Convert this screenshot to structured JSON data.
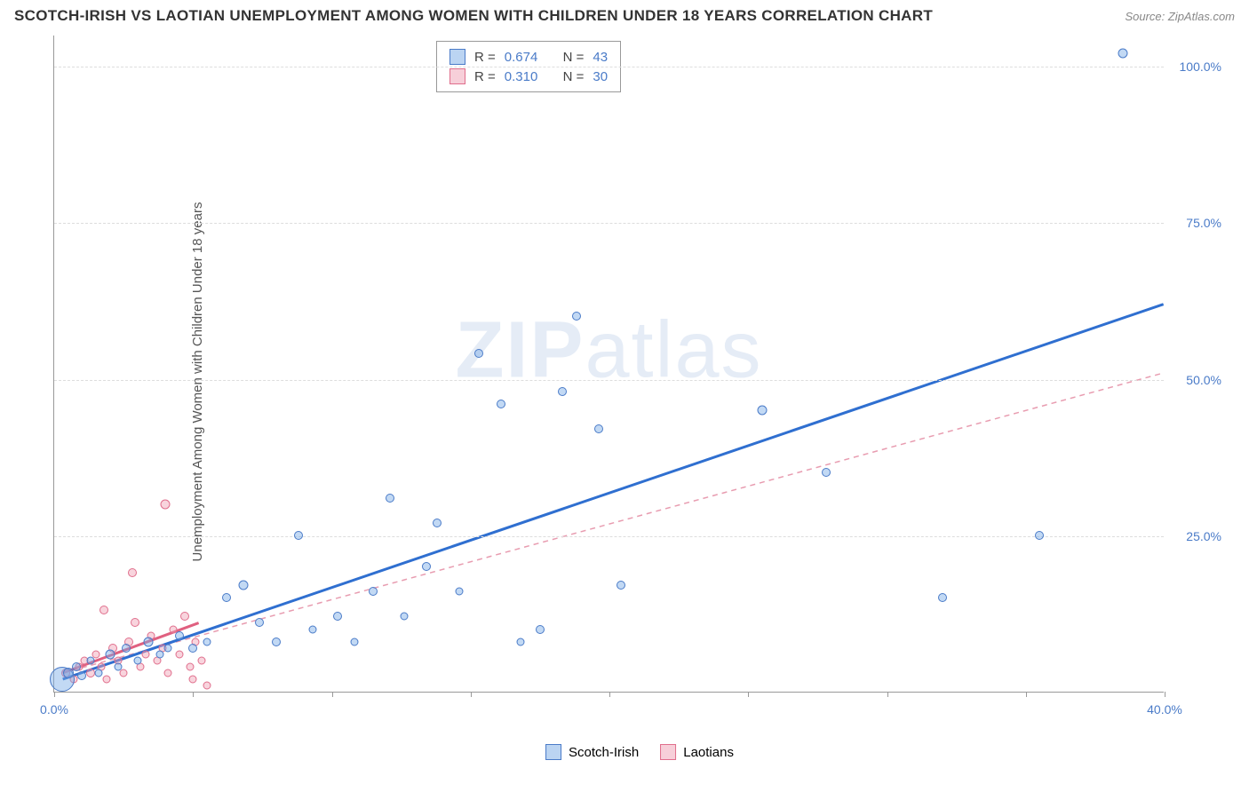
{
  "title": "SCOTCH-IRISH VS LAOTIAN UNEMPLOYMENT AMONG WOMEN WITH CHILDREN UNDER 18 YEARS CORRELATION CHART",
  "source": "Source: ZipAtlas.com",
  "ylabel": "Unemployment Among Women with Children Under 18 years",
  "watermark_a": "ZIP",
  "watermark_b": "atlas",
  "chart": {
    "type": "scatter",
    "xlim": [
      0,
      40
    ],
    "ylim": [
      0,
      105
    ],
    "xtick_step": 5,
    "ytick_step": 25,
    "x_label_first": "0.0%",
    "x_label_last": "40.0%",
    "y_labels": [
      "25.0%",
      "50.0%",
      "75.0%",
      "100.0%"
    ],
    "background_color": "#ffffff",
    "grid_color": "#dddddd",
    "axis_color": "#999999"
  },
  "series": [
    {
      "name": "Scotch-Irish",
      "color_fill": "rgba(120,170,230,0.45)",
      "color_stroke": "#4a7bc8",
      "R": "0.674",
      "N": "43",
      "trend": {
        "x1": 0.3,
        "y1": 2,
        "x2": 40,
        "y2": 62,
        "stroke": "#2f6fd0",
        "width": 3,
        "dash": ""
      },
      "points": [
        {
          "x": 0.3,
          "y": 2,
          "r": 28
        },
        {
          "x": 0.5,
          "y": 3,
          "r": 12
        },
        {
          "x": 0.8,
          "y": 4,
          "r": 10
        },
        {
          "x": 1.0,
          "y": 2.5,
          "r": 10
        },
        {
          "x": 1.3,
          "y": 5,
          "r": 9
        },
        {
          "x": 1.6,
          "y": 3,
          "r": 9
        },
        {
          "x": 2.0,
          "y": 6,
          "r": 11
        },
        {
          "x": 2.3,
          "y": 4,
          "r": 9
        },
        {
          "x": 2.6,
          "y": 7,
          "r": 10
        },
        {
          "x": 3.0,
          "y": 5,
          "r": 9
        },
        {
          "x": 3.4,
          "y": 8,
          "r": 11
        },
        {
          "x": 3.8,
          "y": 6,
          "r": 9
        },
        {
          "x": 4.1,
          "y": 7,
          "r": 9
        },
        {
          "x": 4.5,
          "y": 9,
          "r": 10
        },
        {
          "x": 5.0,
          "y": 7,
          "r": 10
        },
        {
          "x": 5.5,
          "y": 8,
          "r": 9
        },
        {
          "x": 6.2,
          "y": 15,
          "r": 10
        },
        {
          "x": 6.8,
          "y": 17,
          "r": 11
        },
        {
          "x": 7.4,
          "y": 11,
          "r": 10
        },
        {
          "x": 8.0,
          "y": 8,
          "r": 10
        },
        {
          "x": 8.8,
          "y": 25,
          "r": 10
        },
        {
          "x": 9.3,
          "y": 10,
          "r": 9
        },
        {
          "x": 10.2,
          "y": 12,
          "r": 10
        },
        {
          "x": 10.8,
          "y": 8,
          "r": 9
        },
        {
          "x": 11.5,
          "y": 16,
          "r": 10
        },
        {
          "x": 12.1,
          "y": 31,
          "r": 10
        },
        {
          "x": 12.6,
          "y": 12,
          "r": 9
        },
        {
          "x": 13.4,
          "y": 20,
          "r": 10
        },
        {
          "x": 13.8,
          "y": 27,
          "r": 10
        },
        {
          "x": 14.6,
          "y": 16,
          "r": 9
        },
        {
          "x": 15.3,
          "y": 54,
          "r": 10
        },
        {
          "x": 16.1,
          "y": 46,
          "r": 10
        },
        {
          "x": 16.8,
          "y": 8,
          "r": 9
        },
        {
          "x": 17.5,
          "y": 10,
          "r": 10
        },
        {
          "x": 18.3,
          "y": 48,
          "r": 10
        },
        {
          "x": 18.8,
          "y": 60,
          "r": 10
        },
        {
          "x": 19.6,
          "y": 42,
          "r": 10
        },
        {
          "x": 20.4,
          "y": 17,
          "r": 10
        },
        {
          "x": 25.5,
          "y": 45,
          "r": 11
        },
        {
          "x": 27.8,
          "y": 35,
          "r": 10
        },
        {
          "x": 32.0,
          "y": 15,
          "r": 10
        },
        {
          "x": 35.5,
          "y": 25,
          "r": 10
        },
        {
          "x": 38.5,
          "y": 102,
          "r": 11
        }
      ]
    },
    {
      "name": "Laotians",
      "color_fill": "rgba(240,160,180,0.45)",
      "color_stroke": "#e06e8c",
      "R": "0.310",
      "N": "30",
      "trend": {
        "x1": 0.3,
        "y1": 3,
        "x2": 40,
        "y2": 51,
        "stroke": "#e89cb0",
        "width": 1.5,
        "dash": "6,5"
      },
      "trend_solid": {
        "x1": 0.3,
        "y1": 3,
        "x2": 5.2,
        "y2": 11,
        "stroke": "#e06080",
        "width": 3
      },
      "points": [
        {
          "x": 0.4,
          "y": 3,
          "r": 10
        },
        {
          "x": 0.7,
          "y": 2,
          "r": 9
        },
        {
          "x": 0.9,
          "y": 4,
          "r": 9
        },
        {
          "x": 1.1,
          "y": 5,
          "r": 9
        },
        {
          "x": 1.3,
          "y": 3,
          "r": 10
        },
        {
          "x": 1.5,
          "y": 6,
          "r": 9
        },
        {
          "x": 1.7,
          "y": 4,
          "r": 9
        },
        {
          "x": 1.9,
          "y": 2,
          "r": 9
        },
        {
          "x": 2.1,
          "y": 7,
          "r": 10
        },
        {
          "x": 2.3,
          "y": 5,
          "r": 9
        },
        {
          "x": 2.5,
          "y": 3,
          "r": 9
        },
        {
          "x": 2.7,
          "y": 8,
          "r": 10
        },
        {
          "x": 2.9,
          "y": 11,
          "r": 10
        },
        {
          "x": 3.1,
          "y": 4,
          "r": 9
        },
        {
          "x": 3.3,
          "y": 6,
          "r": 9
        },
        {
          "x": 3.5,
          "y": 9,
          "r": 9
        },
        {
          "x": 3.7,
          "y": 5,
          "r": 9
        },
        {
          "x": 3.9,
          "y": 7,
          "r": 9
        },
        {
          "x": 4.1,
          "y": 3,
          "r": 9
        },
        {
          "x": 4.3,
          "y": 10,
          "r": 9
        },
        {
          "x": 4.5,
          "y": 6,
          "r": 9
        },
        {
          "x": 4.7,
          "y": 12,
          "r": 10
        },
        {
          "x": 4.9,
          "y": 4,
          "r": 9
        },
        {
          "x": 5.1,
          "y": 8,
          "r": 9
        },
        {
          "x": 2.8,
          "y": 19,
          "r": 10
        },
        {
          "x": 1.8,
          "y": 13,
          "r": 10
        },
        {
          "x": 4.0,
          "y": 30,
          "r": 11
        },
        {
          "x": 5.0,
          "y": 2,
          "r": 9
        },
        {
          "x": 5.3,
          "y": 5,
          "r": 9
        },
        {
          "x": 5.5,
          "y": 1,
          "r": 9
        }
      ]
    }
  ],
  "legend": {
    "series1": "Scotch-Irish",
    "series2": "Laotians"
  },
  "stats_labels": {
    "R": "R =",
    "N": "N ="
  }
}
